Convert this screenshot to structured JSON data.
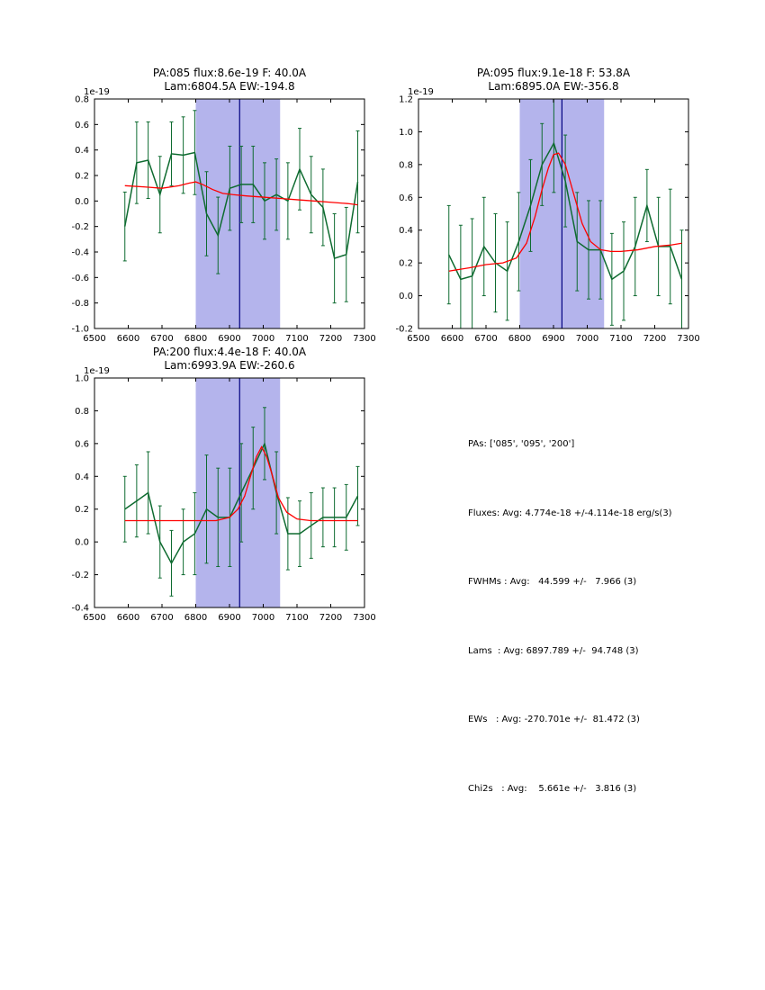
{
  "figure": {
    "colors": {
      "data": "#0e6b30",
      "fit": "#ff0000",
      "band": "#b4b4ec",
      "vline": "#000080",
      "axis": "#000000"
    }
  },
  "chart_data": [
    {
      "type": "line",
      "title1": "PA:085 flux:8.6e-19 F: 40.0A",
      "title2": "Lam:6804.5A EW:-194.8",
      "offset": "1e-19",
      "xlim": [
        6500,
        7300
      ],
      "ylim": [
        -1.0,
        0.8
      ],
      "xticks": [
        6500,
        6600,
        6700,
        6800,
        6900,
        7000,
        7100,
        7200,
        7300
      ],
      "xtick_labels": [
        "6500",
        "6600",
        "6700",
        "6800",
        "6900",
        "7000",
        "7100",
        "7200",
        "7300"
      ],
      "yticks": [
        -1.0,
        -0.8,
        -0.6,
        -0.4,
        -0.2,
        0.0,
        0.2,
        0.4,
        0.6,
        0.8
      ],
      "ytick_labels": [
        "-1.0",
        "-0.8",
        "-0.6",
        "-0.4",
        "-0.2",
        "0.0",
        "0.2",
        "0.4",
        "0.6",
        "0.8"
      ],
      "band": [
        6800,
        7050
      ],
      "vline": 6930,
      "x": [
        6590,
        6625,
        6659,
        6694,
        6728,
        6763,
        6797,
        6832,
        6866,
        6901,
        6935,
        6970,
        7004,
        7039,
        7073,
        7108,
        7142,
        7177,
        7211,
        7246,
        7280
      ],
      "y": [
        -0.2,
        0.3,
        0.32,
        0.05,
        0.37,
        0.36,
        0.38,
        -0.1,
        -0.27,
        0.1,
        0.13,
        0.13,
        0.0,
        0.05,
        0.0,
        0.25,
        0.05,
        -0.05,
        -0.45,
        -0.42,
        0.15
      ],
      "yerr": [
        0.27,
        0.32,
        0.3,
        0.3,
        0.25,
        0.3,
        0.33,
        0.33,
        0.3,
        0.33,
        0.3,
        0.3,
        0.3,
        0.28,
        0.3,
        0.32,
        0.3,
        0.3,
        0.35,
        0.37,
        0.4
      ],
      "fit_x": [
        6590,
        6650,
        6700,
        6750,
        6780,
        6800,
        6820,
        6850,
        6880,
        6910,
        6950,
        7000,
        7050,
        7100,
        7150,
        7200,
        7250,
        7280
      ],
      "fit_y": [
        0.12,
        0.11,
        0.1,
        0.12,
        0.14,
        0.15,
        0.13,
        0.09,
        0.06,
        0.05,
        0.04,
        0.03,
        0.02,
        0.01,
        0.0,
        -0.01,
        -0.02,
        -0.03
      ]
    },
    {
      "type": "line",
      "title1": "PA:095 flux:9.1e-18 F: 53.8A",
      "title2": "Lam:6895.0A EW:-356.8",
      "offset": "1e-19",
      "xlim": [
        6500,
        7300
      ],
      "ylim": [
        -0.2,
        1.2
      ],
      "xticks": [
        6500,
        6600,
        6700,
        6800,
        6900,
        7000,
        7100,
        7200,
        7300
      ],
      "xtick_labels": [
        "6500",
        "6600",
        "6700",
        "6800",
        "6900",
        "7000",
        "7100",
        "7200",
        "7300"
      ],
      "yticks": [
        -0.2,
        0.0,
        0.2,
        0.4,
        0.6,
        0.8,
        1.0,
        1.2
      ],
      "ytick_labels": [
        "-0.2",
        "0.0",
        "0.2",
        "0.4",
        "0.6",
        "0.8",
        "1.0",
        "1.2"
      ],
      "band": [
        6800,
        7050
      ],
      "vline": 6925,
      "x": [
        6590,
        6625,
        6659,
        6694,
        6728,
        6763,
        6797,
        6832,
        6866,
        6901,
        6935,
        6970,
        7004,
        7039,
        7073,
        7108,
        7142,
        7177,
        7211,
        7246,
        7280
      ],
      "y": [
        0.25,
        0.1,
        0.12,
        0.3,
        0.2,
        0.15,
        0.33,
        0.55,
        0.8,
        0.93,
        0.7,
        0.33,
        0.28,
        0.28,
        0.1,
        0.15,
        0.3,
        0.55,
        0.3,
        0.3,
        0.1
      ],
      "yerr": [
        0.3,
        0.33,
        0.35,
        0.3,
        0.3,
        0.3,
        0.3,
        0.28,
        0.25,
        0.3,
        0.28,
        0.3,
        0.3,
        0.3,
        0.28,
        0.3,
        0.3,
        0.22,
        0.3,
        0.35,
        0.3
      ],
      "fit_x": [
        6590,
        6650,
        6700,
        6750,
        6790,
        6820,
        6845,
        6865,
        6885,
        6900,
        6915,
        6935,
        6960,
        6985,
        7010,
        7040,
        7070,
        7100,
        7150,
        7200,
        7250,
        7280
      ],
      "fit_y": [
        0.15,
        0.17,
        0.19,
        0.2,
        0.23,
        0.32,
        0.48,
        0.64,
        0.78,
        0.86,
        0.87,
        0.8,
        0.62,
        0.44,
        0.33,
        0.28,
        0.27,
        0.27,
        0.28,
        0.3,
        0.31,
        0.32
      ]
    },
    {
      "type": "line",
      "title1": "PA:200 flux:4.4e-18 F: 40.0A",
      "title2": "Lam:6993.9A EW:-260.6",
      "offset": "1e-19",
      "xlim": [
        6500,
        7300
      ],
      "ylim": [
        -0.4,
        1.0
      ],
      "xticks": [
        6500,
        6600,
        6700,
        6800,
        6900,
        7000,
        7100,
        7200,
        7300
      ],
      "xtick_labels": [
        "6500",
        "6600",
        "6700",
        "6800",
        "6900",
        "7000",
        "7100",
        "7200",
        "7300"
      ],
      "yticks": [
        -0.4,
        -0.2,
        0.0,
        0.2,
        0.4,
        0.6,
        0.8,
        1.0
      ],
      "ytick_labels": [
        "-0.4",
        "-0.2",
        "0.0",
        "0.2",
        "0.4",
        "0.6",
        "0.8",
        "1.0"
      ],
      "band": [
        6800,
        7050
      ],
      "vline": 6930,
      "x": [
        6590,
        6625,
        6659,
        6694,
        6728,
        6763,
        6797,
        6832,
        6866,
        6901,
        6935,
        6970,
        7004,
        7039,
        7073,
        7108,
        7142,
        7177,
        7211,
        7246,
        7280
      ],
      "y": [
        0.2,
        0.25,
        0.3,
        0.0,
        -0.13,
        0.0,
        0.05,
        0.2,
        0.15,
        0.15,
        0.3,
        0.45,
        0.6,
        0.3,
        0.05,
        0.05,
        0.1,
        0.15,
        0.15,
        0.15,
        0.28
      ],
      "yerr": [
        0.2,
        0.22,
        0.25,
        0.22,
        0.2,
        0.2,
        0.25,
        0.33,
        0.3,
        0.3,
        0.3,
        0.25,
        0.22,
        0.25,
        0.22,
        0.2,
        0.2,
        0.18,
        0.18,
        0.2,
        0.18
      ],
      "fit_x": [
        6590,
        6700,
        6800,
        6860,
        6900,
        6925,
        6945,
        6965,
        6980,
        6995,
        7010,
        7025,
        7045,
        7070,
        7100,
        7140,
        7200,
        7280
      ],
      "fit_y": [
        0.13,
        0.13,
        0.13,
        0.13,
        0.15,
        0.2,
        0.28,
        0.42,
        0.52,
        0.58,
        0.52,
        0.42,
        0.27,
        0.18,
        0.14,
        0.13,
        0.13,
        0.13
      ]
    }
  ],
  "stats": {
    "lines": [
      "PAs: ['085', '095', '200']",
      "Fluxes: Avg: 4.774e-18 +/-4.114e-18 erg/s(3)",
      "FWHMs : Avg:   44.599 +/-   7.966 (3)",
      "Lams  : Avg: 6897.789 +/-  94.748 (3)",
      "EWs   : Avg: -270.701e +/-  81.472 (3)",
      "Chi2s   : Avg:    5.661e +/-   3.816 (3)"
    ]
  }
}
